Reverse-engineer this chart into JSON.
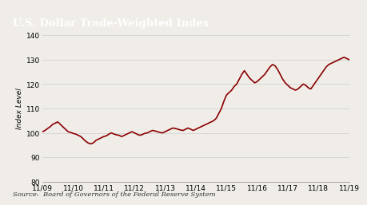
{
  "title": "U.S. Dollar Trade-Weighted Index",
  "ylabel": "Index Level",
  "source": "Source:  Board of Governors of the Federal Reserve System",
  "title_bg_color": "#4a4a4a",
  "title_text_color": "#ffffff",
  "line_color": "#8b0000",
  "background_color": "#f0ede8",
  "plot_bg_color": "#f0ede8",
  "ylim": [
    80,
    140
  ],
  "yticks": [
    80,
    90,
    100,
    110,
    120,
    130,
    140
  ],
  "xtick_labels": [
    "11/09",
    "11/10",
    "11/11",
    "11/12",
    "11/13",
    "11/14",
    "11/15",
    "11/16",
    "11/17",
    "11/18",
    "11/19"
  ],
  "x_values": [
    0,
    1,
    2,
    3,
    4,
    5,
    6,
    7,
    8,
    9,
    10,
    11,
    12,
    13,
    14,
    15,
    16,
    17,
    18,
    19,
    20,
    21,
    22,
    23,
    24,
    25,
    26,
    27,
    28,
    29,
    30,
    31,
    32,
    33,
    34,
    35,
    36,
    37,
    38,
    39,
    40,
    41,
    42,
    43,
    44,
    45,
    46,
    47,
    48,
    49,
    50,
    51,
    52,
    53,
    54,
    55,
    56,
    57,
    58,
    59,
    60,
    61,
    62,
    63,
    64,
    65,
    66,
    67,
    68,
    69,
    70,
    71,
    72,
    73,
    74,
    75,
    76,
    77,
    78,
    79,
    80,
    81,
    82,
    83,
    84,
    85,
    86,
    87,
    88,
    89,
    90,
    91,
    92,
    93,
    94,
    95,
    96,
    97,
    98,
    99,
    100,
    101,
    102,
    103,
    104,
    105,
    106,
    107,
    108,
    109,
    110,
    111,
    112,
    113,
    114,
    115,
    116,
    117,
    118,
    119,
    120
  ],
  "y_values": [
    100.5,
    101.0,
    101.8,
    102.5,
    103.5,
    104.0,
    104.5,
    103.5,
    102.5,
    101.5,
    100.5,
    100.2,
    99.8,
    99.5,
    99.0,
    98.5,
    97.5,
    96.5,
    95.8,
    95.5,
    96.0,
    97.0,
    97.5,
    98.0,
    98.5,
    98.8,
    99.5,
    100.0,
    99.5,
    99.2,
    99.0,
    98.5,
    99.0,
    99.5,
    100.0,
    100.5,
    100.0,
    99.5,
    99.0,
    99.3,
    99.8,
    100.0,
    100.5,
    101.0,
    100.8,
    100.5,
    100.2,
    100.0,
    100.5,
    101.0,
    101.5,
    102.0,
    101.8,
    101.5,
    101.2,
    101.0,
    101.5,
    102.0,
    101.5,
    101.0,
    101.5,
    102.0,
    102.5,
    103.0,
    103.5,
    104.0,
    104.5,
    105.0,
    106.0,
    108.0,
    110.0,
    113.0,
    115.5,
    116.5,
    117.5,
    119.0,
    120.0,
    122.0,
    124.0,
    125.5,
    124.0,
    122.5,
    121.5,
    120.5,
    121.0,
    122.0,
    123.0,
    124.0,
    125.5,
    127.0,
    128.0,
    127.5,
    126.0,
    124.0,
    122.0,
    120.5,
    119.5,
    118.5,
    118.0,
    117.5,
    118.0,
    119.0,
    120.0,
    119.5,
    118.5,
    118.0,
    119.5,
    121.0,
    122.5,
    124.0,
    125.5,
    127.0,
    128.0,
    128.5,
    129.0,
    129.5,
    130.0,
    130.5,
    131.0,
    130.5,
    130.0
  ],
  "title_fontsize": 9.5,
  "tick_fontsize": 6.5,
  "ylabel_fontsize": 6.5,
  "source_fontsize": 6.0,
  "linewidth": 1.2
}
